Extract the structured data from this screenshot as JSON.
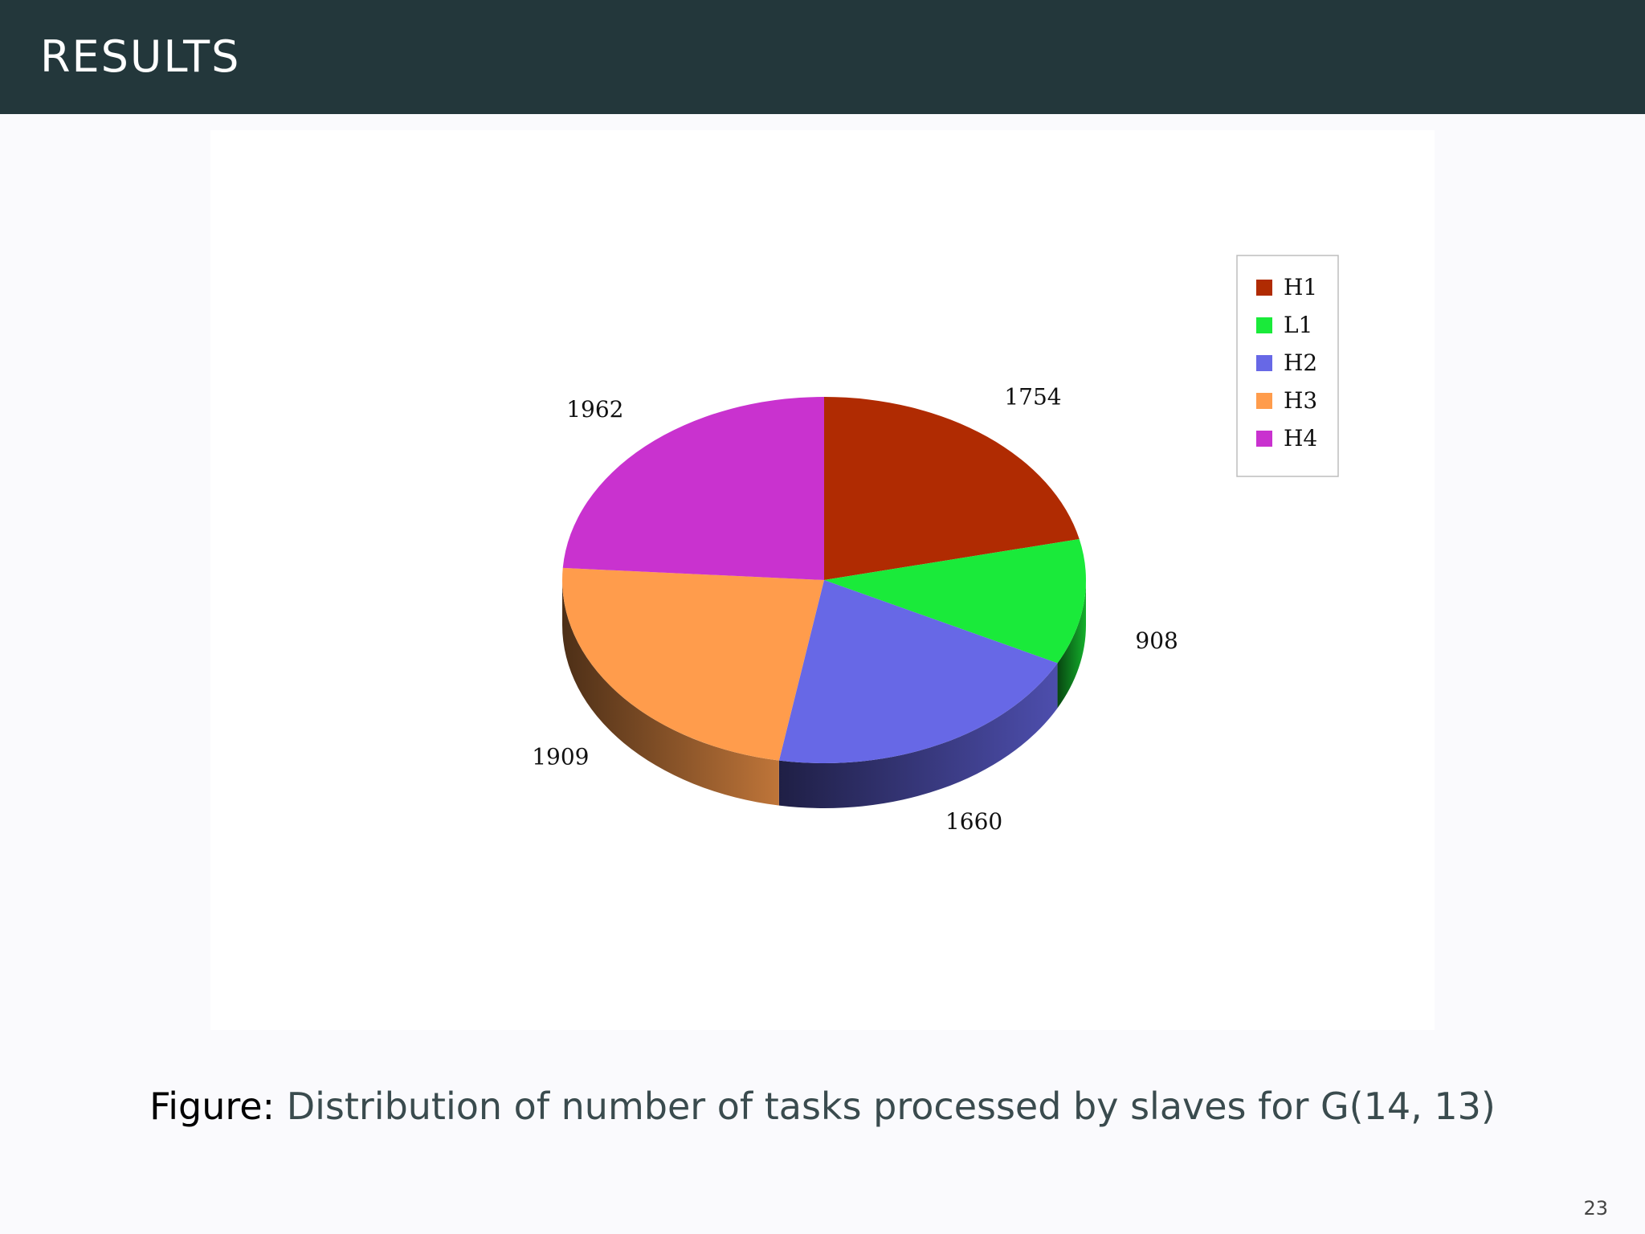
{
  "header": {
    "title": "RESULTS"
  },
  "chart_data": {
    "type": "pie",
    "title": "",
    "slices": [
      {
        "label": "H1",
        "value": 1754,
        "color": "#b02b02"
      },
      {
        "label": "L1",
        "value": 908,
        "color": "#1aea3a"
      },
      {
        "label": "H2",
        "value": 1660,
        "color": "#6768e6"
      },
      {
        "label": "H3",
        "value": 1909,
        "color": "#ff9c4c"
      },
      {
        "label": "H4",
        "value": 1962,
        "color": "#c932cf"
      }
    ],
    "style": "3d",
    "legend": "right"
  },
  "caption": {
    "label": "Figure:",
    "text": "Distribution of number of tasks processed by slaves for G(14, 13)"
  },
  "page_number": "23"
}
